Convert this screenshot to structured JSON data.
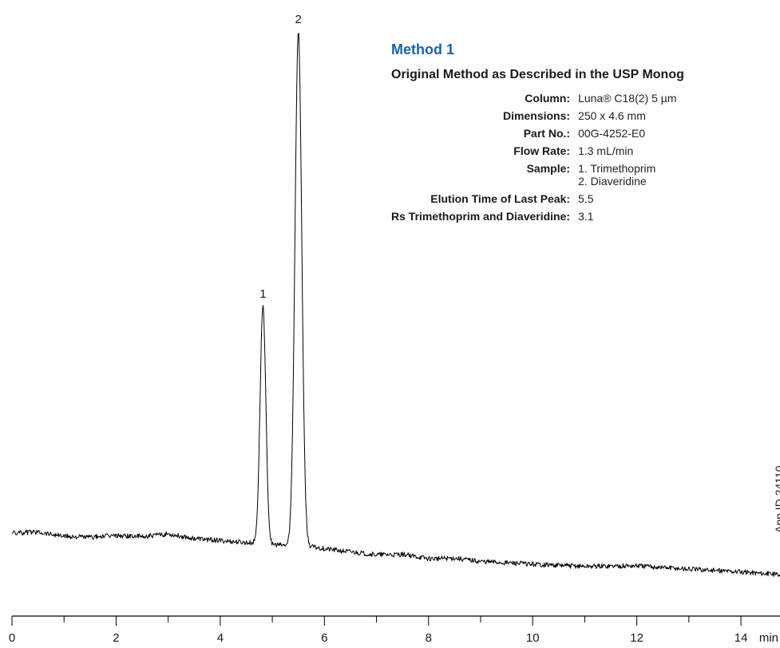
{
  "method": {
    "title": "Method 1",
    "subtitle": "Original Method as Described in the USP Monog",
    "params": [
      {
        "label": "Column:",
        "value": "Luna® C18(2) 5 µm"
      },
      {
        "label": "Dimensions:",
        "value": "250 x 4.6 mm"
      },
      {
        "label": "Part No.:",
        "value": "00G-4252-E0"
      },
      {
        "label": "Flow Rate:",
        "value": "1.3 mL/min"
      },
      {
        "label": "Sample:",
        "value": "1. Trimethoprim",
        "value2": "2. Diaveridine"
      },
      {
        "label": "Elution Time of Last Peak:",
        "value": "5.5"
      },
      {
        "label": "Rs Trimethoprim and Diaveridine:",
        "value": "3.1"
      }
    ]
  },
  "app_id": "App ID 24110",
  "chart_data": {
    "type": "line",
    "title": "",
    "xlabel": "min",
    "ylabel": "",
    "xlim": [
      0,
      14.75
    ],
    "ylim": [
      0,
      100
    ],
    "x_ticks": [
      0,
      2,
      4,
      6,
      8,
      10,
      12,
      14
    ],
    "x_tick_labels": [
      "0",
      "2",
      "4",
      "6",
      "8",
      "10",
      "12",
      "14"
    ],
    "minor_tick_step": 1,
    "grid": false,
    "legend": "none",
    "line_color": "#000000",
    "peaks": [
      {
        "label": "1",
        "name": "Trimethoprim",
        "retention_time": 4.82,
        "height": 49
      },
      {
        "label": "2",
        "name": "Diaveridine",
        "retention_time": 5.5,
        "height": 99
      }
    ],
    "baseline": {
      "x": [
        0,
        0.5,
        1,
        1.5,
        2,
        2.5,
        3,
        3.5,
        4,
        4.5,
        4.7,
        5.1,
        5.2,
        5.8,
        6,
        7,
        7.5,
        8,
        8.5,
        9,
        10,
        11,
        12,
        13,
        14,
        14.75
      ],
      "y": [
        7.5,
        7.8,
        7.0,
        6.8,
        7.1,
        6.9,
        7.4,
        6.6,
        6.2,
        5.8,
        5.7,
        5.4,
        5.3,
        5.0,
        4.7,
        3.6,
        3.7,
        2.9,
        3.0,
        2.4,
        1.9,
        1.5,
        1.6,
        1.0,
        0.5,
        0.0
      ]
    }
  }
}
